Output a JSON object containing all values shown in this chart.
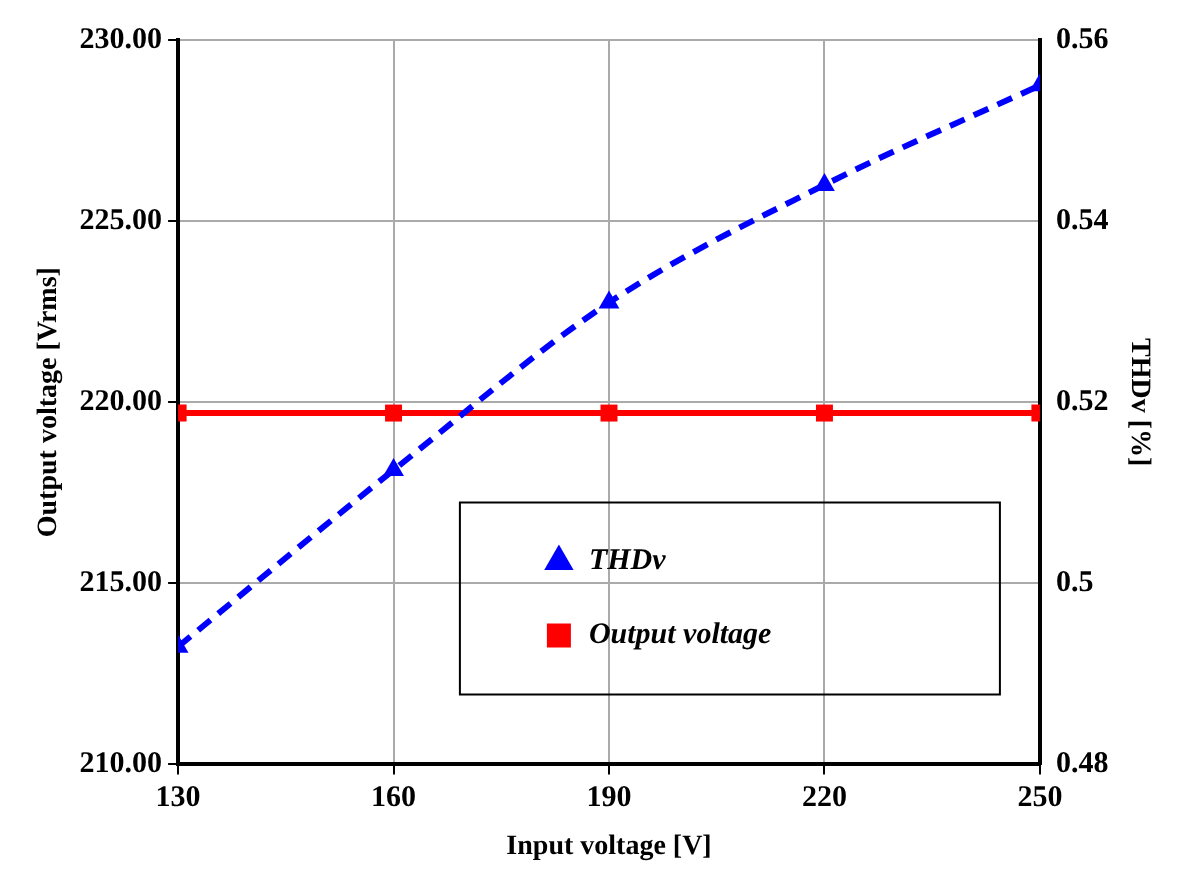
{
  "chart_data": {
    "type": "line",
    "xlabel": "Input voltage [V]",
    "ylabel": "Output voltage [Vrms]",
    "y2label": "THDv [%]",
    "x": [
      130,
      160,
      190,
      220,
      250
    ],
    "xlim": [
      130,
      250
    ],
    "xticks": [
      130,
      160,
      190,
      220,
      250
    ],
    "ylim": [
      210,
      230
    ],
    "yticks": [
      {
        "value": 210,
        "label": "210.00"
      },
      {
        "value": 215,
        "label": "215.00"
      },
      {
        "value": 220,
        "label": "220.00"
      },
      {
        "value": 225,
        "label": "225.00"
      },
      {
        "value": 230,
        "label": "230.00"
      }
    ],
    "y2lim": [
      0.48,
      0.56
    ],
    "y2ticks": [
      0.48,
      0.5,
      0.52,
      0.54,
      0.56
    ],
    "grid": true,
    "legend": "bottom right",
    "series": [
      {
        "name": "THDv",
        "color": "#0000ff",
        "axis": "y2",
        "marker": "triangle",
        "line_style": "dashed",
        "values": [
          0.493,
          0.5125,
          0.531,
          0.544,
          0.555
        ]
      },
      {
        "name": "Output voltage",
        "color": "#ff0000",
        "axis": "y",
        "marker": "square",
        "line_style": "solid",
        "values": [
          219.7,
          219.7,
          219.7,
          219.7,
          219.7
        ]
      }
    ]
  }
}
